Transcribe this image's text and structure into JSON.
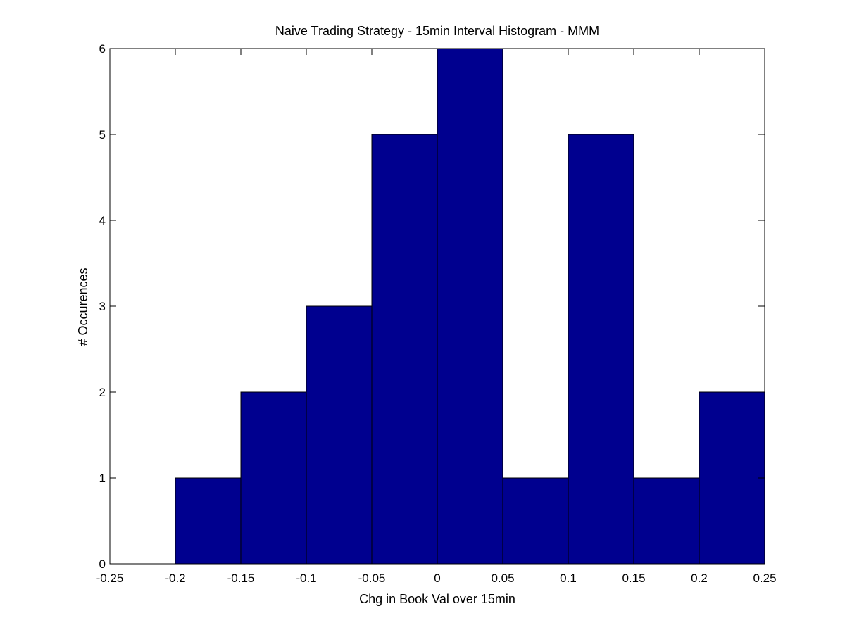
{
  "chart_data": {
    "type": "bar",
    "title": "Naive Trading Strategy - 15min Interval Histogram - MMM",
    "xlabel": "Chg in Book Val over 15min",
    "ylabel": "# Occurences",
    "bin_edges": [
      -0.2,
      -0.15,
      -0.1,
      -0.05,
      0,
      0.05,
      0.1,
      0.15,
      0.2,
      0.25
    ],
    "values": [
      1,
      2,
      3,
      5,
      6,
      1,
      5,
      1,
      2
    ],
    "xlim": [
      -0.25,
      0.25
    ],
    "ylim": [
      0,
      6
    ],
    "xticks": [
      "-0.25",
      "-0.2",
      "-0.15",
      "-0.1",
      "-0.05",
      "0",
      "0.05",
      "0.1",
      "0.15",
      "0.2",
      "0.25"
    ],
    "yticks": [
      "0",
      "1",
      "2",
      "3",
      "4",
      "5",
      "6"
    ],
    "grid": false,
    "bar_color": "#00008F",
    "edge_color": "#000000"
  }
}
